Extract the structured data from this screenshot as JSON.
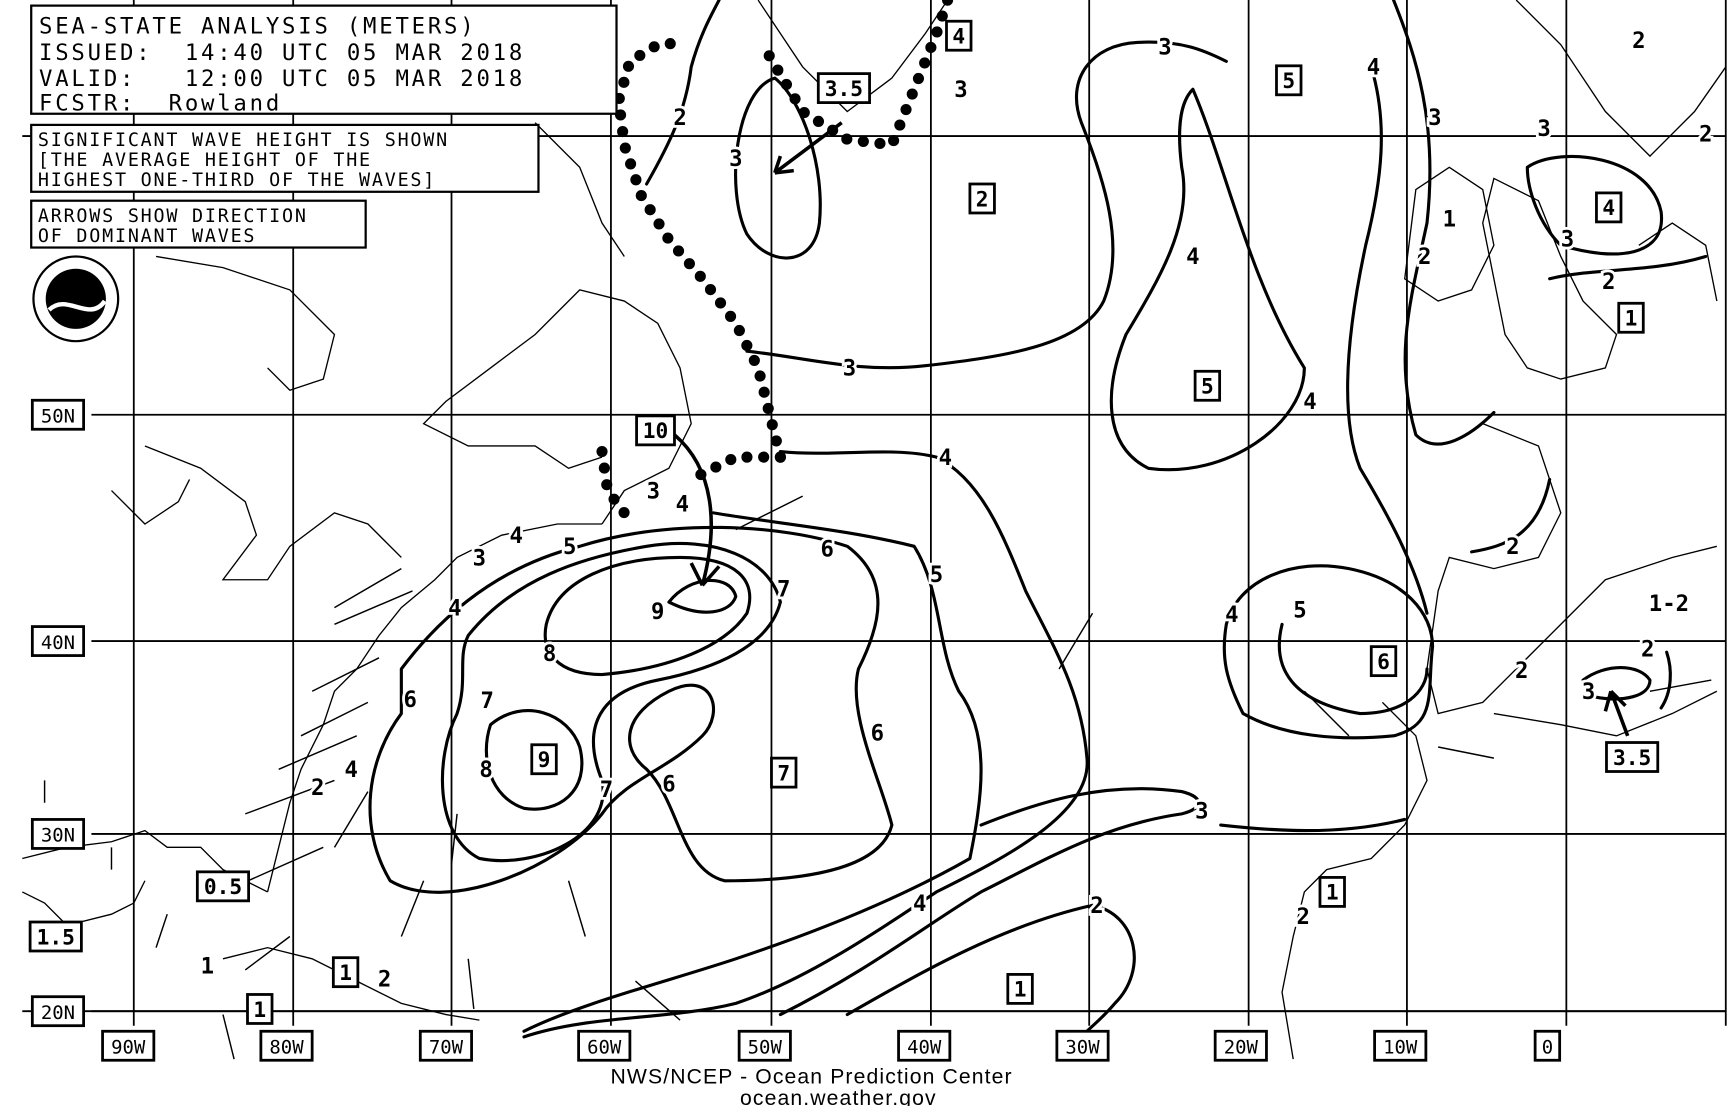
{
  "header": {
    "title": "SEA-STATE ANALYSIS (METERS)",
    "issued": "ISSUED:  14:40 UTC 05 MAR 2018",
    "valid": "VALID:   12:00 UTC 05 MAR 2018",
    "forecaster": "FCSTR:  Rowland"
  },
  "notes": {
    "wave_height": [
      "SIGNIFICANT WAVE HEIGHT IS SHOWN",
      "[THE AVERAGE HEIGHT OF THE",
      "HIGHEST ONE-THIRD OF THE WAVES]"
    ],
    "arrows": [
      "ARROWS SHOW DIRECTION",
      "OF DOMINANT WAVES"
    ]
  },
  "logo": {
    "text": "NOAA",
    "icon": "noaa-logo"
  },
  "latitude_labels": [
    "50N",
    "40N",
    "30N",
    "20N"
  ],
  "longitude_labels": [
    "90W",
    "80W",
    "70W",
    "60W",
    "50W",
    "40W",
    "30W",
    "20W",
    "10W",
    "0"
  ],
  "boxed_wave_heights": [
    "4",
    "3.5",
    "5",
    "2",
    "4",
    "1",
    "5",
    "10",
    "9",
    "7",
    "6",
    "0.5",
    "1.5",
    "1",
    "1",
    "1",
    "1",
    "3.5"
  ],
  "contour_labels": [
    "3",
    "2",
    "3",
    "3",
    "4",
    "3",
    "2",
    "3",
    "4",
    "3",
    "4",
    "4",
    "2",
    "1",
    "2",
    "3",
    "4",
    "2",
    "5",
    "3",
    "4",
    "6",
    "7",
    "9",
    "8",
    "7",
    "8",
    "7",
    "6",
    "6",
    "5",
    "4",
    "5",
    "4",
    "2",
    "6",
    "4",
    "2",
    "2",
    "1",
    "3",
    "2",
    "3",
    "4",
    "2",
    "1-2",
    "2",
    "3",
    "2"
  ],
  "footer": {
    "line1": "NWS/NCEP - Ocean Prediction Center",
    "line2": "ocean.weather.gov"
  },
  "colors": {
    "ink": "#000000",
    "background": "#ffffff"
  }
}
